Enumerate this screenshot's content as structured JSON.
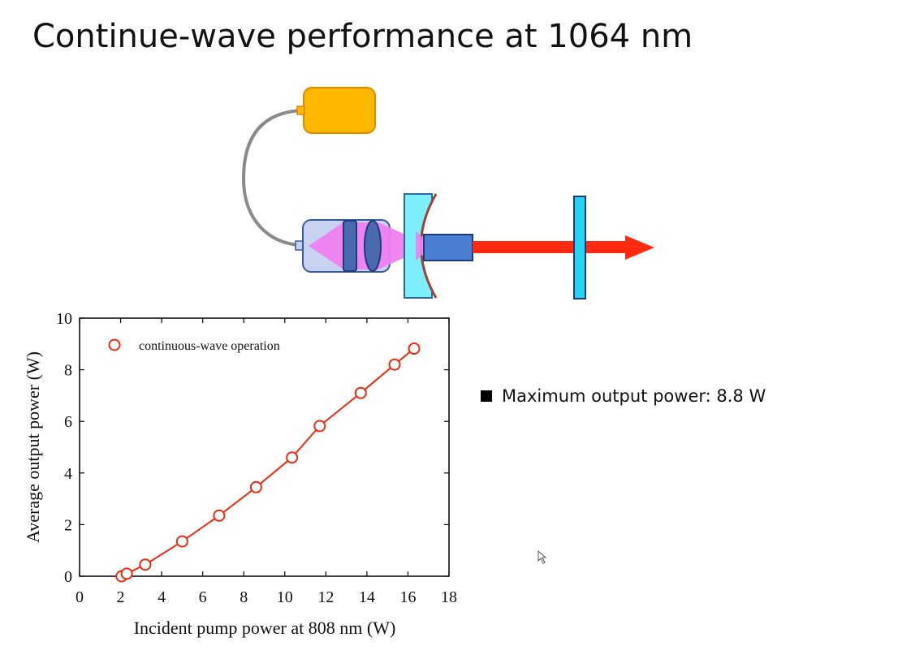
{
  "slide": {
    "title": "Continue-wave performance at 1064 nm",
    "bullet_text": "Maximum output power: 8.8 W"
  },
  "colors": {
    "pump_source": "#FFB800",
    "fiber": "#8a8a8a",
    "lens_housing": "#c7d3f0",
    "pump_beam": "#f07ff0",
    "mirror": "#7deffa",
    "crystal": "#4a7fd4",
    "laser_beam": "#ff2a10",
    "data_red": "#ee2a12"
  },
  "chart_data": {
    "type": "scatter",
    "xlabel": "Incident pump power at 808 nm (W)",
    "ylabel": "Average output power (W)",
    "xlim": [
      0,
      18
    ],
    "ylim": [
      0,
      10
    ],
    "xticks": [
      0,
      2,
      4,
      6,
      8,
      10,
      12,
      14,
      16,
      18
    ],
    "yticks": [
      0,
      2,
      4,
      6,
      8,
      10
    ],
    "grid": false,
    "legend_position": "top-left",
    "series": [
      {
        "name": "continuous-wave operation",
        "x": [
          2.05,
          2.3,
          3.2,
          5.0,
          6.8,
          8.6,
          10.35,
          11.7,
          13.7,
          15.35,
          16.3
        ],
        "values": [
          0.0,
          0.1,
          0.45,
          1.35,
          2.35,
          3.45,
          4.6,
          5.82,
          7.1,
          8.2,
          8.82
        ],
        "marker": "open-circle",
        "fit_line": true
      }
    ]
  }
}
